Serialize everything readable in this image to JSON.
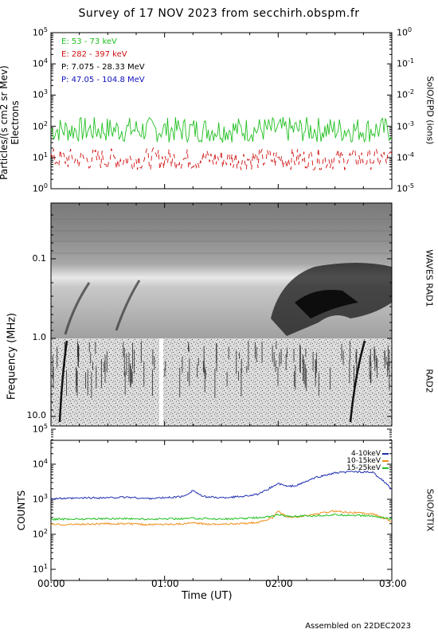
{
  "title": "Survey of 17 NOV 2023 from secchirh.obspm.fr",
  "footer": "Assembled on 22DEC2023",
  "panels": {
    "particles": {
      "ylabel_line1": "Particles/(s cm2 sr Mev)",
      "ylabel_line2": "Electrons",
      "right_label": "SolO/EPD (ions)",
      "left_ticks": [
        "10^5",
        "10^4",
        "10^3",
        "10^2",
        "10^1",
        "10^0"
      ],
      "right_ticks": [
        "10^0",
        "10^-1",
        "10^-2",
        "10^-3",
        "10^-4",
        "10^-5"
      ],
      "legend": [
        {
          "label": "E: 53 - 73 keV",
          "color": "#22c022"
        },
        {
          "label": "E: 282 - 397 keV",
          "color": "#d01010"
        },
        {
          "label": "P: 7.075 - 28.33 MeV",
          "color": "#000000"
        },
        {
          "label": "P: 47.05 - 104.8 MeV",
          "color": "#1010c0"
        }
      ]
    },
    "radio": {
      "ylabel": "Frequency (MHz)",
      "right_label_top": "WAVES RAD1",
      "right_label_bottom": "RAD2",
      "ticks": [
        "0.1",
        "1.0",
        "10.0"
      ]
    },
    "stix": {
      "ylabel": "COUNTS",
      "right_label": "SolO/STIX",
      "ticks": [
        "10^5",
        "10^4",
        "10^3",
        "10^2",
        "10^1"
      ],
      "legend": [
        {
          "label": "4-10keV",
          "color": "#1f2fb0"
        },
        {
          "label": "10-15keV",
          "color": "#f0901a"
        },
        {
          "label": "15-25keV",
          "color": "#20c020"
        }
      ]
    }
  },
  "xaxis": {
    "label": "Time (UT)",
    "ticks": [
      "00:00",
      "01:00",
      "02:00",
      "03:00"
    ]
  },
  "chart_data": [
    {
      "type": "line",
      "title": "",
      "ylabel": "Particles/(s cm2 sr Mev) Electrons",
      "yscale": "log",
      "ylim": [
        1,
        100000
      ],
      "xlim": [
        "00:00",
        "03:00"
      ],
      "series": [
        {
          "name": "E: 53 - 73 keV",
          "color": "#22c022",
          "level_approx": 70,
          "range": [
            30,
            200
          ]
        },
        {
          "name": "E: 282 - 397 keV",
          "color": "#d01010",
          "level_approx": 8,
          "range": [
            4,
            20
          ]
        }
      ]
    },
    {
      "type": "heatmap",
      "title": "",
      "ylabel": "Frequency (MHz)",
      "ylim": [
        0.02,
        14
      ],
      "xlim": [
        "00:00",
        "03:00"
      ],
      "bands": [
        "WAVES RAD1",
        "RAD2"
      ],
      "features": [
        {
          "time": "00:08",
          "desc": "type III burst"
        },
        {
          "time": "00:37",
          "desc": "type III burst"
        },
        {
          "time": "02:00-02:40",
          "desc": "intense emission RAD1"
        },
        {
          "time": "02:40",
          "desc": "type III burst"
        }
      ]
    },
    {
      "type": "line",
      "title": "",
      "ylabel": "COUNTS",
      "yscale": "log",
      "ylim": [
        10,
        100000
      ],
      "xlim": [
        "00:00",
        "03:00"
      ],
      "x_minutes": [
        0,
        10,
        20,
        30,
        40,
        50,
        60,
        70,
        75,
        80,
        90,
        100,
        110,
        117,
        120,
        125,
        130,
        140,
        150,
        160,
        165,
        170,
        175,
        180
      ],
      "series": [
        {
          "name": "4-10keV",
          "color": "#1f2fb0",
          "values": [
            1050,
            1050,
            1100,
            1100,
            1150,
            1050,
            1100,
            1200,
            1800,
            1200,
            1100,
            1200,
            1400,
            2300,
            2800,
            2300,
            2500,
            4200,
            5600,
            6200,
            6000,
            5800,
            3500,
            2000
          ]
        },
        {
          "name": "10-15keV",
          "color": "#f0901a",
          "values": [
            190,
            190,
            195,
            200,
            200,
            190,
            195,
            200,
            210,
            200,
            195,
            200,
            220,
            300,
            450,
            300,
            310,
            380,
            460,
            420,
            400,
            380,
            300,
            230
          ]
        },
        {
          "name": "15-25keV",
          "color": "#20c020",
          "values": [
            270,
            270,
            275,
            280,
            280,
            270,
            275,
            280,
            290,
            280,
            275,
            280,
            300,
            330,
            360,
            330,
            330,
            340,
            360,
            350,
            340,
            330,
            300,
            270
          ]
        }
      ]
    }
  ]
}
